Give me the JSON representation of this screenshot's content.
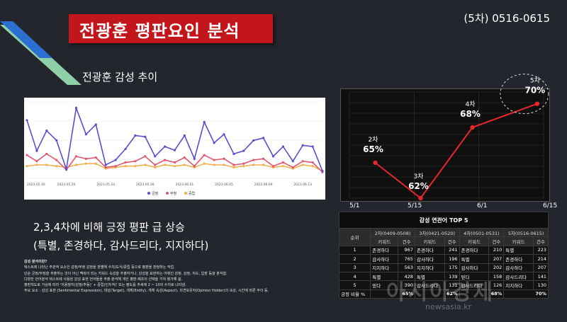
{
  "header": {
    "title": "전광훈 평판요인 분석",
    "period": "(5차) 0516-0615"
  },
  "sentiment_chart": {
    "label": "전광훈 감성 추이",
    "x_ticks": [
      "2023.05.16",
      "2023.05.20",
      "2023.05.24",
      "2023.05.28",
      "2023.06.01",
      "2023.06.05",
      "2023.06.09",
      "2023.06.13"
    ],
    "legend": [
      "긍정",
      "부정",
      "중립"
    ],
    "colors": {
      "positive": "#5a4fcf",
      "negative": "#e05870",
      "neutral": "#f0b050"
    }
  },
  "chart_data": [
    {
      "type": "line",
      "title": "",
      "categories": [
        "2023.05.16",
        "",
        "",
        "",
        "2023.05.20",
        "",
        "",
        "",
        "2023.05.24",
        "",
        "",
        "",
        "2023.05.28",
        "",
        "",
        "",
        "2023.06.01",
        "",
        "",
        "",
        "2023.06.05",
        "",
        "",
        "",
        "2023.06.09",
        "",
        "",
        "",
        "2023.06.13",
        "",
        ""
      ],
      "series": [
        {
          "name": "긍정",
          "values": [
            95,
            45,
            78,
            62,
            15,
            115,
            72,
            88,
            22,
            30,
            48,
            70,
            68,
            36,
            52,
            46,
            70,
            32,
            92,
            58,
            72,
            40,
            45,
            62,
            66,
            36,
            52,
            28,
            54,
            52,
            12
          ]
        },
        {
          "name": "부정",
          "values": [
            38,
            28,
            40,
            30,
            14,
            36,
            32,
            34,
            18,
            20,
            26,
            28,
            36,
            22,
            30,
            26,
            34,
            20,
            38,
            30,
            32,
            22,
            24,
            30,
            32,
            20,
            26,
            18,
            28,
            26,
            10
          ]
        },
        {
          "name": "중립",
          "values": [
            20,
            22,
            22,
            20,
            18,
            22,
            24,
            24,
            16,
            18,
            20,
            20,
            22,
            18,
            22,
            20,
            22,
            18,
            24,
            22,
            22,
            18,
            20,
            22,
            22,
            18,
            20,
            16,
            22,
            20,
            12
          ]
        }
      ]
    },
    {
      "type": "line",
      "title": "",
      "x": [
        "5/1",
        "5/15",
        "6/1",
        "6/15"
      ],
      "points": [
        {
          "label": "2차",
          "value": 65,
          "pos": 0.4
        },
        {
          "label": "3차",
          "value": 62,
          "pos": 1.1
        },
        {
          "label": "4차",
          "value": 68,
          "pos": 1.9
        },
        {
          "label": "5차",
          "value": 70,
          "pos": 2.9
        }
      ],
      "value_labels": [
        "65%",
        "62%",
        "68%",
        "70%"
      ],
      "ylim": [
        62,
        71
      ],
      "line_color": "#e8262d"
    }
  ],
  "summary": {
    "line1": "2,3,4차에 비해 긍정 평판 급 상승",
    "line2": "(특별, 존경하다, 감사드리다, 지지하다)"
  },
  "notes": {
    "heading": "감성 분석이란?",
    "lines": [
      "텍스트에 나타난 주관적 요소인 감정/부정 감정을 판별해 수치/도식/중립 등으로 평판을 판정하는 작업.",
      "단순 긍정/부정을 추출하는 것이 아닌 맥락이 되는 키워드 속성을 추출하거나, 감성을 표현하는 어휘인 감정, 감정, 지도, 입장 등을 분석함.",
      "다양한 언어분석 텍스트에 사용된 감성 표현 언어들을 추출·분석해 개인 평판·제조의 선택을 거쳐 평가해 봄.",
      "평판척도로 가상에 따라 '이용정지(감정/추동)' + 중립(인지적)' 또는 평도를 추세에 2 ~ 10의 수치로 나타냄.",
      "주요 요소 : 감성 표현 (Sentimental Expression), 대상(Target), 개체(Entity), 개체 속성(Aspect), 의견보유자(Opinion Holder)의 속성, 시간에 따른 추이 등."
    ]
  },
  "table": {
    "title": "감성 연관어 TOP 5",
    "rank_header": "순위",
    "rounds": [
      "2차(0409-0508)",
      "3차(0421-0520)",
      "4차(0501-0531)",
      "5차(0516-0615)"
    ],
    "sub_headers": [
      "키워드",
      "건수"
    ],
    "rows": [
      {
        "rank": "1",
        "cells": [
          "존경하다",
          "967",
          "존경하다",
          "241",
          "존경하다",
          "210",
          "특별",
          "223"
        ]
      },
      {
        "rank": "2",
        "cells": [
          "감사하다",
          "765",
          "감사하다",
          "196",
          "특별",
          "207",
          "존경하다",
          "214"
        ]
      },
      {
        "rank": "3",
        "cells": [
          "지지하다",
          "563",
          "지지하다",
          "175",
          "감사하다",
          "202",
          "감사하다",
          "207"
        ]
      },
      {
        "rank": "4",
        "cells": [
          "특별",
          "428",
          "특별",
          "139",
          "믿다",
          "158",
          "감사드리다",
          "141"
        ]
      },
      {
        "rank": "5",
        "cells": [
          "믿다",
          "390",
          "감사드리다",
          "131",
          "감사드리다",
          "126",
          "지지하다",
          "130"
        ]
      }
    ],
    "rate_label": "긍정 비율 %",
    "rates": [
      "65%",
      "62%",
      "68%",
      "70%"
    ]
  },
  "watermark": {
    "main": "아시아경제",
    "sub": "newsasia.kr"
  }
}
